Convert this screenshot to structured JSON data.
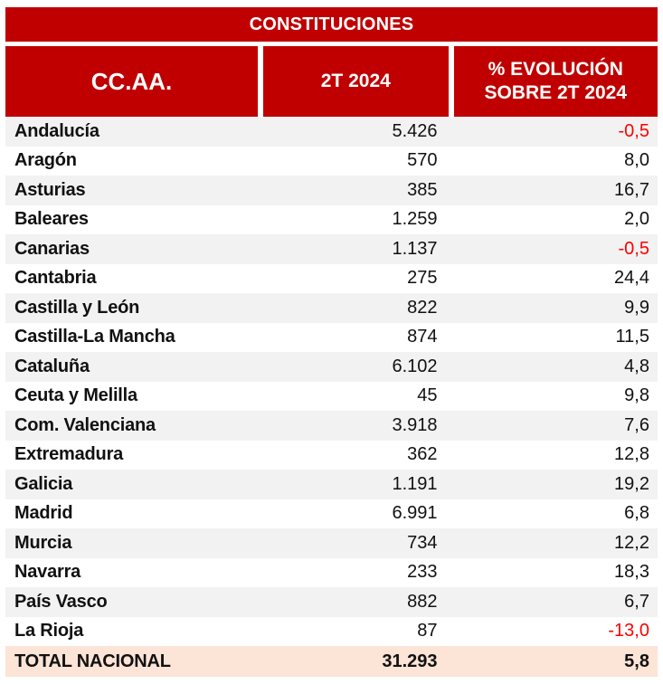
{
  "colors": {
    "header_red": "#C00000",
    "negative_red": "#FF0000",
    "stripe_gray": "#F2F2F2",
    "total_peach": "#FCE4D6"
  },
  "header": {
    "col1": "CC.AA.",
    "col2": "2T 2024",
    "col3_line1": "% EVOLUCIÓN",
    "col3_line2": "SOBRE 2T 2024"
  },
  "chart_data": {
    "type": "table",
    "title": "CONSTITUCIONES",
    "columns": [
      "CC.AA.",
      "2T 2024",
      "% EVOLUCIÓN SOBRE 2T 2024"
    ],
    "rows": [
      [
        "Andalucía",
        "5.426",
        "-0,5"
      ],
      [
        "Aragón",
        "570",
        "8,0"
      ],
      [
        "Asturias",
        "385",
        "16,7"
      ],
      [
        "Baleares",
        "1.259",
        "2,0"
      ],
      [
        "Canarias",
        "1.137",
        "-0,5"
      ],
      [
        "Cantabria",
        "275",
        "24,4"
      ],
      [
        "Castilla y León",
        "822",
        "9,9"
      ],
      [
        "Castilla-La Mancha",
        "874",
        "11,5"
      ],
      [
        "Cataluña",
        "6.102",
        "4,8"
      ],
      [
        "Ceuta y Melilla",
        "45",
        "9,8"
      ],
      [
        "Com. Valenciana",
        "3.918",
        "7,6"
      ],
      [
        "Extremadura",
        "362",
        "12,8"
      ],
      [
        "Galicia",
        "1.191",
        "19,2"
      ],
      [
        "Madrid",
        "6.991",
        "6,8"
      ],
      [
        "Murcia",
        "734",
        "12,2"
      ],
      [
        "Navarra",
        "233",
        "18,3"
      ],
      [
        "País Vasco",
        "882",
        "6,7"
      ],
      [
        "La Rioja",
        "87",
        "-13,0"
      ]
    ],
    "total": [
      "TOTAL NACIONAL",
      "31.293",
      "5,8"
    ]
  }
}
